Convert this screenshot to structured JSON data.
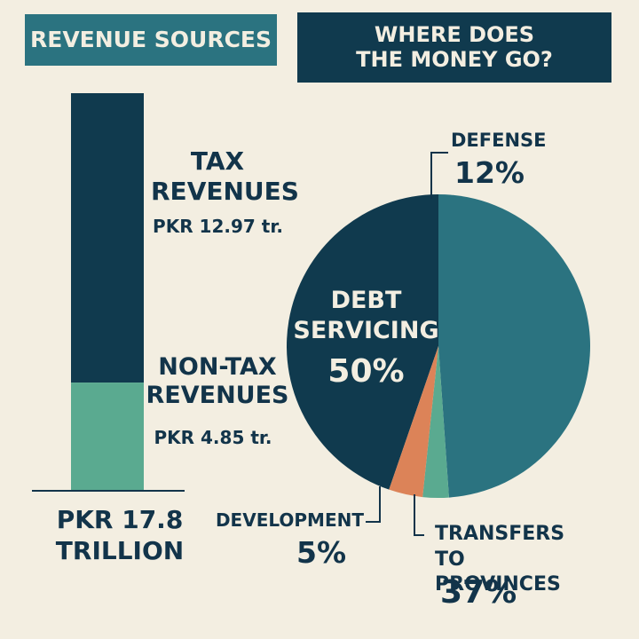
{
  "headers": {
    "revenue": "REVENUE SOURCES",
    "spending_line1": "WHERE DOES",
    "spending_line2": "THE MONEY GO?"
  },
  "revenue": {
    "tax_label_line1": "TAX",
    "tax_label_line2": "REVENUES",
    "tax_value_text": "PKR 12.97 tr.",
    "nontax_label_line1": "NON-TAX",
    "nontax_label_line2": "REVENUES",
    "nontax_value_text": "PKR 4.85 tr.",
    "total_line1": "PKR 17.8",
    "total_line2": "TRILLION"
  },
  "spending": {
    "debt_line1": "DEBT",
    "debt_line2": "SERVICING",
    "debt_pct": "50%",
    "defense_label": "DEFENSE",
    "defense_pct": "12%",
    "development_label": "DEVELOPMENT",
    "development_pct": "5%",
    "transfers_line1": "TRANSFERS TO",
    "transfers_line2": "PROVINCES",
    "transfers_pct": "37%"
  },
  "colors": {
    "dark_navy": "#103a4e",
    "teal": "#2b7380",
    "mint": "#5aaa90",
    "orange": "#dc8358",
    "background": "#f3eee1"
  },
  "chart_data": [
    {
      "type": "bar",
      "stacked": true,
      "title": "REVENUE SOURCES",
      "series": [
        {
          "name": "NON-TAX REVENUES",
          "values": [
            4.85
          ]
        },
        {
          "name": "TAX REVENUES",
          "values": [
            12.97
          ]
        }
      ],
      "total": 17.8,
      "unit": "PKR trillion"
    },
    {
      "type": "pie",
      "title": "WHERE DOES THE MONEY GO?",
      "labels": [
        "DEBT SERVICING",
        "TRANSFERS TO PROVINCES",
        "DEVELOPMENT",
        "DEFENSE"
      ],
      "values": [
        50,
        37,
        5,
        12
      ],
      "unit": "%"
    }
  ]
}
